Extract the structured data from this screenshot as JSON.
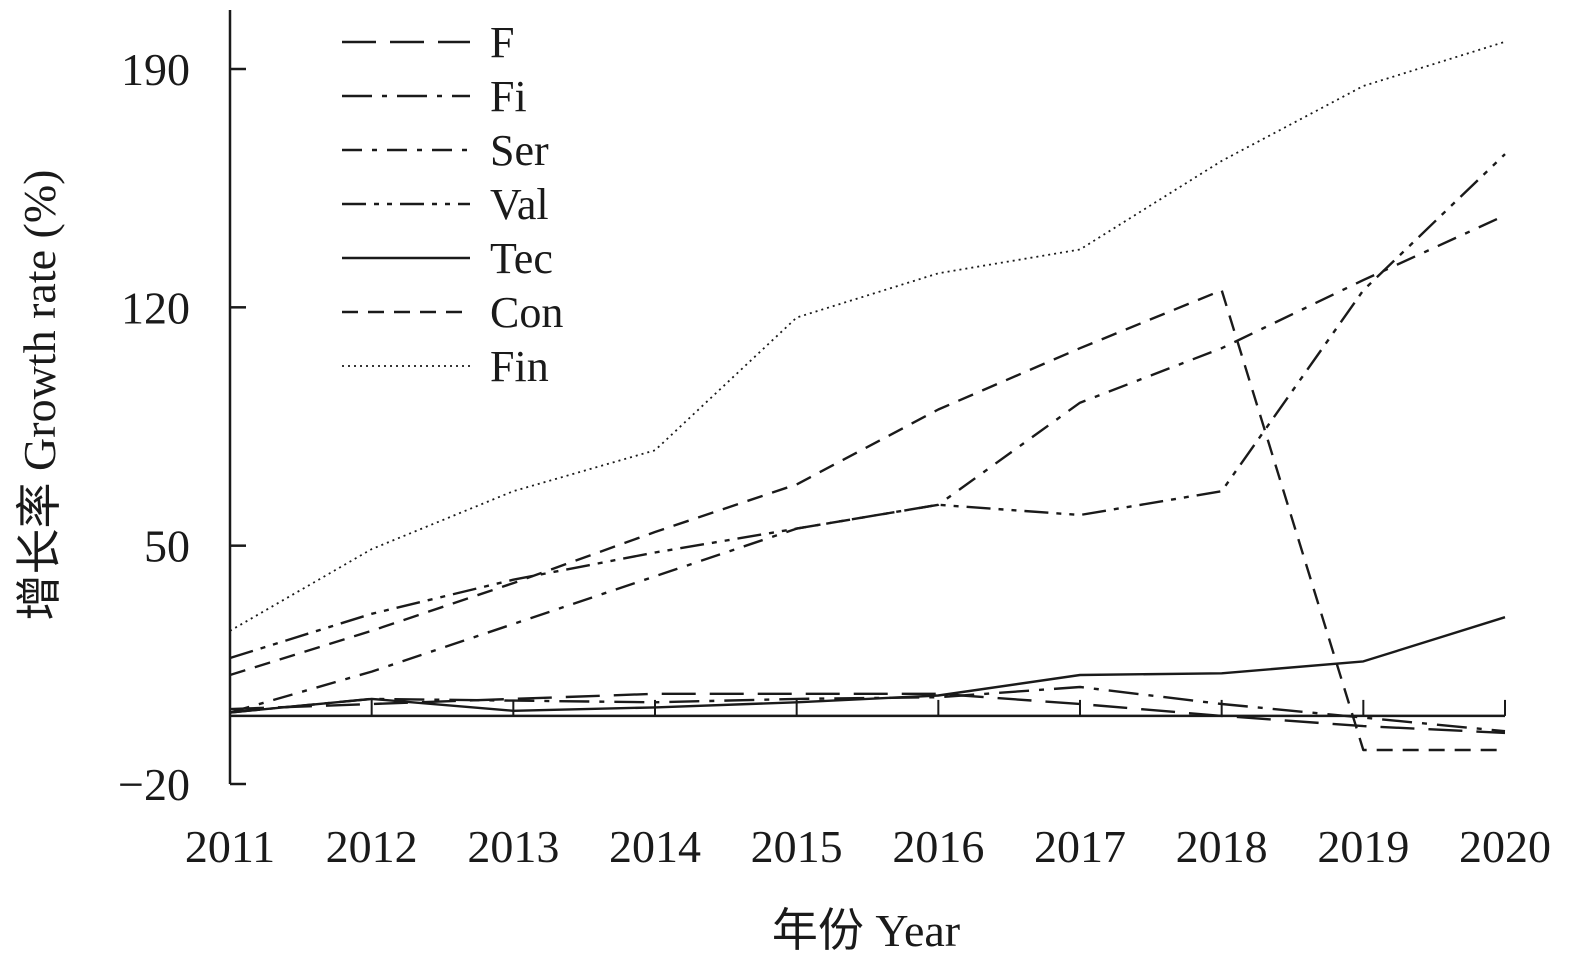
{
  "chart_data": {
    "type": "line",
    "title": "",
    "xlabel": "年份 Year",
    "ylabel": "增长率 Growth rate (%)",
    "x": [
      "2011",
      "2012",
      "2013",
      "2014",
      "2015",
      "2016",
      "2017",
      "2018",
      "2019",
      "2020"
    ],
    "y_ticks": [
      "190",
      "120",
      "50",
      "−20"
    ],
    "y_tick_values": [
      190,
      120,
      50,
      -20
    ],
    "ylim": [
      -20,
      210
    ],
    "grid": false,
    "legend_position": "top-left",
    "series": [
      {
        "name": "F",
        "dash": "long-dash",
        "values": [
          2,
          3.5,
          5,
          6.5,
          6.5,
          6.5,
          3.5,
          0,
          -3,
          -5
        ]
      },
      {
        "name": "Fi",
        "dash": "long-dash-dot",
        "values": [
          1,
          5,
          4.5,
          4,
          5,
          5.5,
          8.5,
          3.5,
          -0.5,
          -4.5
        ]
      },
      {
        "name": "Ser",
        "dash": "dash-dot",
        "values": [
          1,
          13,
          27,
          41,
          55,
          62,
          92,
          108,
          128,
          147
        ]
      },
      {
        "name": "Val",
        "dash": "dash-dot-dot",
        "values": [
          17,
          30,
          40,
          48,
          55,
          62,
          59,
          66,
          125,
          165
        ]
      },
      {
        "name": "Tec",
        "dash": "solid",
        "values": [
          1,
          5,
          1.5,
          2.5,
          4,
          6,
          12,
          12.5,
          16,
          29
        ]
      },
      {
        "name": "Con",
        "dash": "dash",
        "values": [
          12,
          25,
          39,
          54,
          68,
          90,
          108,
          125,
          -10,
          -10
        ]
      },
      {
        "name": "Fin",
        "dash": "dot",
        "values": [
          25,
          49,
          66,
          78,
          117,
          130,
          137,
          163,
          185,
          198
        ]
      }
    ]
  }
}
